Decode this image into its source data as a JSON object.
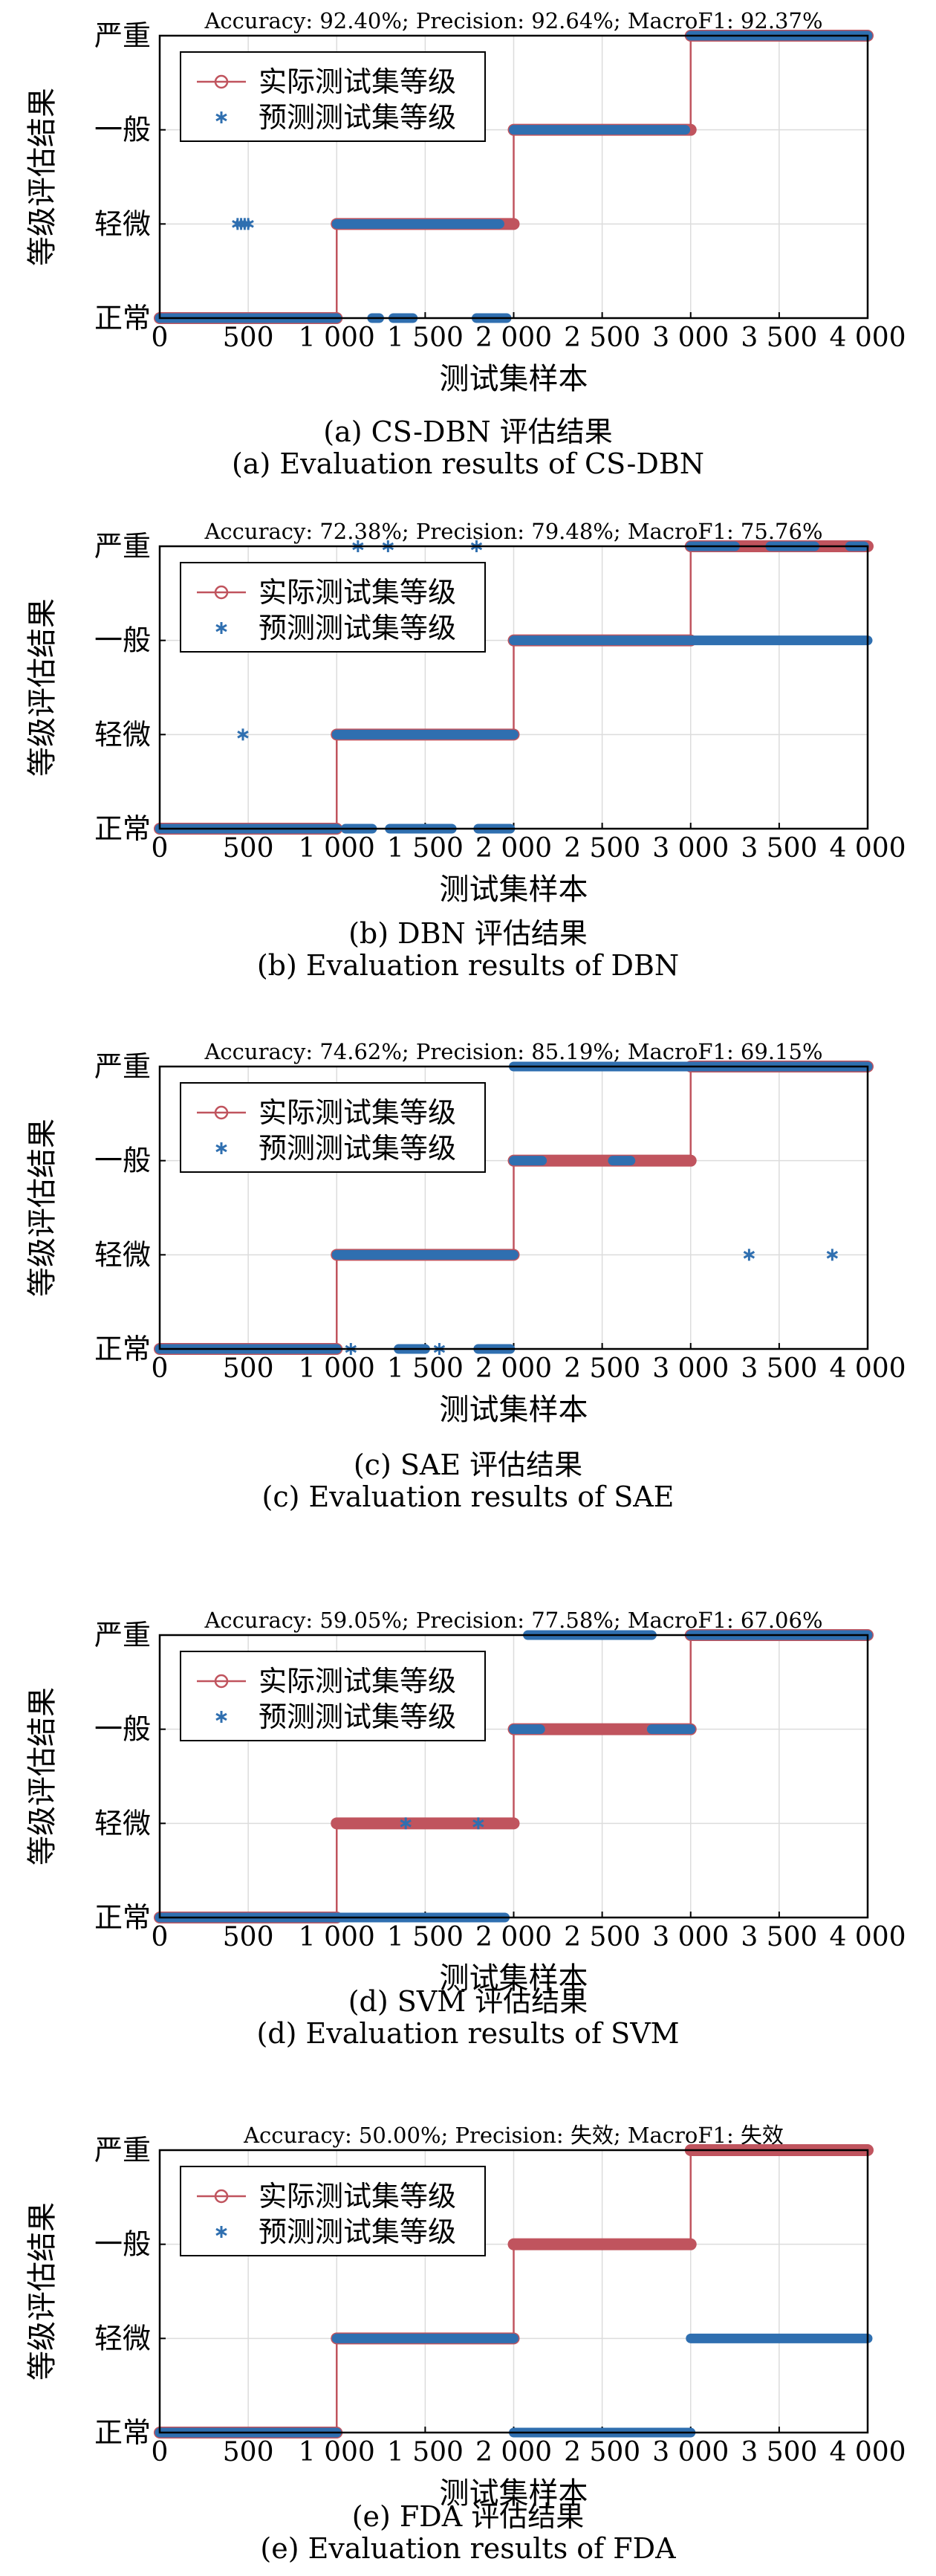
{
  "colors": {
    "actual": "#c0545e",
    "predicted": "#2f6fb0",
    "grid": "#dcdcdc",
    "axis": "#000000"
  },
  "chart_data": [
    {
      "type": "line",
      "title": "Accuracy: 92.40%; Precision: 92.64%; MacroF1: 92.37%",
      "xlabel": "测试集样本",
      "ylabel": "等级评估结果",
      "xlim": [
        0,
        4000
      ],
      "x_ticks": [
        0,
        500,
        1000,
        1500,
        2000,
        2500,
        3000,
        3500,
        4000
      ],
      "x_tick_labels": [
        "0",
        "500",
        "1 000",
        "1 500",
        "2 000",
        "2 500",
        "3 000",
        "3 500",
        "4 000"
      ],
      "y_levels": [
        1,
        2,
        3,
        4
      ],
      "y_tick_labels": [
        "正常",
        "轻微",
        "一般",
        "严重"
      ],
      "grid": true,
      "legend": "top-left",
      "series": [
        {
          "name": "实际测试集等级",
          "marker": "o",
          "segments": [
            [
              0,
              1000,
              1
            ],
            [
              1000,
              2000,
              2
            ],
            [
              2000,
              3000,
              3
            ],
            [
              3000,
              4000,
              4
            ]
          ]
        },
        {
          "name": "预测测试集等级",
          "marker": "*",
          "segments": [
            [
              0,
              1000,
              1
            ],
            [
              1000,
              1920,
              2
            ],
            [
              2000,
              2970,
              3
            ],
            [
              3000,
              4000,
              4
            ],
            [
              1200,
              1240,
              1
            ],
            [
              1320,
              1430,
              1
            ],
            [
              1790,
              1960,
              1
            ]
          ],
          "points": [
            [
              440,
              2
            ],
            [
              460,
              2
            ],
            [
              480,
              2
            ],
            [
              500,
              2
            ]
          ]
        }
      ],
      "caption_cn": "(a) CS-DBN 评估结果",
      "caption_en": "(a) Evaluation results of CS-DBN"
    },
    {
      "type": "line",
      "title": "Accuracy: 72.38%; Precision: 79.48%; MacroF1: 75.76%",
      "xlabel": "测试集样本",
      "ylabel": "等级评估结果",
      "xlim": [
        0,
        4000
      ],
      "x_ticks": [
        0,
        500,
        1000,
        1500,
        2000,
        2500,
        3000,
        3500,
        4000
      ],
      "x_tick_labels": [
        "0",
        "500",
        "1 000",
        "1 500",
        "2 000",
        "2 500",
        "3 000",
        "3 500",
        "4 000"
      ],
      "y_levels": [
        1,
        2,
        3,
        4
      ],
      "y_tick_labels": [
        "正常",
        "轻微",
        "一般",
        "严重"
      ],
      "grid": true,
      "legend": "top-left",
      "series": [
        {
          "name": "实际测试集等级",
          "marker": "o",
          "segments": [
            [
              0,
              1000,
              1
            ],
            [
              1000,
              2000,
              2
            ],
            [
              2000,
              3000,
              3
            ],
            [
              3000,
              4000,
              4
            ]
          ]
        },
        {
          "name": "预测测试集等级",
          "marker": "*",
          "segments": [
            [
              0,
              1000,
              1
            ],
            [
              1000,
              2000,
              2
            ],
            [
              2000,
              4000,
              3
            ],
            [
              3000,
              3250,
              4
            ],
            [
              3450,
              3700,
              4
            ],
            [
              3900,
              3980,
              4
            ],
            [
              1050,
              1200,
              1
            ],
            [
              1300,
              1650,
              1
            ],
            [
              1800,
              1980,
              1
            ]
          ],
          "points": [
            [
              470,
              2
            ],
            [
              1120,
              4
            ],
            [
              1290,
              4
            ],
            [
              1790,
              4
            ]
          ]
        }
      ],
      "caption_cn": "(b) DBN 评估结果",
      "caption_en": "(b) Evaluation results of DBN"
    },
    {
      "type": "line",
      "title": "Accuracy: 74.62%; Precision: 85.19%; MacroF1: 69.15%",
      "xlabel": "测试集样本",
      "ylabel": "等级评估结果",
      "xlim": [
        0,
        4000
      ],
      "x_ticks": [
        0,
        500,
        1000,
        1500,
        2000,
        2500,
        3000,
        3500,
        4000
      ],
      "x_tick_labels": [
        "0",
        "500",
        "1 000",
        "1 500",
        "2 000",
        "2 500",
        "3 000",
        "3 500",
        "4 000"
      ],
      "y_levels": [
        1,
        2,
        3,
        4
      ],
      "y_tick_labels": [
        "正常",
        "轻微",
        "一般",
        "严重"
      ],
      "grid": true,
      "legend": "top-left",
      "series": [
        {
          "name": "实际测试集等级",
          "marker": "o",
          "segments": [
            [
              0,
              1000,
              1
            ],
            [
              1000,
              2000,
              2
            ],
            [
              2000,
              3000,
              3
            ],
            [
              3000,
              4000,
              4
            ]
          ]
        },
        {
          "name": "预测测试集等级",
          "marker": "*",
          "segments": [
            [
              0,
              1000,
              1
            ],
            [
              1000,
              2000,
              2
            ],
            [
              2000,
              2160,
              3
            ],
            [
              2560,
              2660,
              3
            ],
            [
              2000,
              4000,
              4
            ],
            [
              1350,
              1500,
              1
            ],
            [
              1800,
              1980,
              1
            ]
          ],
          "points": [
            [
              1080,
              1
            ],
            [
              1580,
              1
            ],
            [
              3330,
              2
            ],
            [
              3800,
              2
            ]
          ]
        }
      ],
      "caption_cn": "(c) SAE 评估结果",
      "caption_en": "(c) Evaluation results of SAE"
    },
    {
      "type": "line",
      "title": "Accuracy: 59.05%; Precision: 77.58%; MacroF1: 67.06%",
      "xlabel": "测试集样本",
      "ylabel": "等级评估结果",
      "xlim": [
        0,
        4000
      ],
      "x_ticks": [
        0,
        500,
        1000,
        1500,
        2000,
        2500,
        3000,
        3500,
        4000
      ],
      "x_tick_labels": [
        "0",
        "500",
        "1 000",
        "1 500",
        "2 000",
        "2 500",
        "3 000",
        "3 500",
        "4 000"
      ],
      "y_levels": [
        1,
        2,
        3,
        4
      ],
      "y_tick_labels": [
        "正常",
        "轻微",
        "一般",
        "严重"
      ],
      "grid": true,
      "legend": "top-left",
      "series": [
        {
          "name": "实际测试集等级",
          "marker": "o",
          "segments": [
            [
              0,
              1000,
              1
            ],
            [
              1000,
              2000,
              2
            ],
            [
              2000,
              3000,
              3
            ],
            [
              3000,
              4000,
              4
            ]
          ]
        },
        {
          "name": "预测测试集等级",
          "marker": "*",
          "segments": [
            [
              0,
              1950,
              1
            ],
            [
              2000,
              2150,
              3
            ],
            [
              2780,
              3000,
              3
            ],
            [
              2080,
              2780,
              4
            ],
            [
              3000,
              4000,
              4
            ]
          ],
          "points": [
            [
              1390,
              2
            ],
            [
              1800,
              2
            ]
          ]
        }
      ],
      "caption_cn": "(d) SVM 评估结果",
      "caption_en": "(d) Evaluation results of SVM"
    },
    {
      "type": "line",
      "title": "Accuracy: 50.00%; Precision: 失效; MacroF1: 失效",
      "xlabel": "测试集样本",
      "ylabel": "等级评估结果",
      "xlim": [
        0,
        4000
      ],
      "x_ticks": [
        0,
        500,
        1000,
        1500,
        2000,
        2500,
        3000,
        3500,
        4000
      ],
      "x_tick_labels": [
        "0",
        "500",
        "1 000",
        "1 500",
        "2 000",
        "2 500",
        "3 000",
        "3 500",
        "4 000"
      ],
      "y_levels": [
        1,
        2,
        3,
        4
      ],
      "y_tick_labels": [
        "正常",
        "轻微",
        "一般",
        "严重"
      ],
      "grid": true,
      "legend": "top-left",
      "series": [
        {
          "name": "实际测试集等级",
          "marker": "o",
          "segments": [
            [
              0,
              1000,
              1
            ],
            [
              1000,
              2000,
              2
            ],
            [
              2000,
              3000,
              3
            ],
            [
              3000,
              4000,
              4
            ]
          ]
        },
        {
          "name": "预测测试集等级",
          "marker": "*",
          "segments": [
            [
              0,
              1000,
              1
            ],
            [
              1000,
              2000,
              2
            ],
            [
              2000,
              3000,
              1
            ],
            [
              3000,
              4000,
              2
            ]
          ],
          "points": []
        }
      ],
      "caption_cn": "(e) FDA 评估结果",
      "caption_en": "(e) Evaluation results of FDA"
    }
  ]
}
